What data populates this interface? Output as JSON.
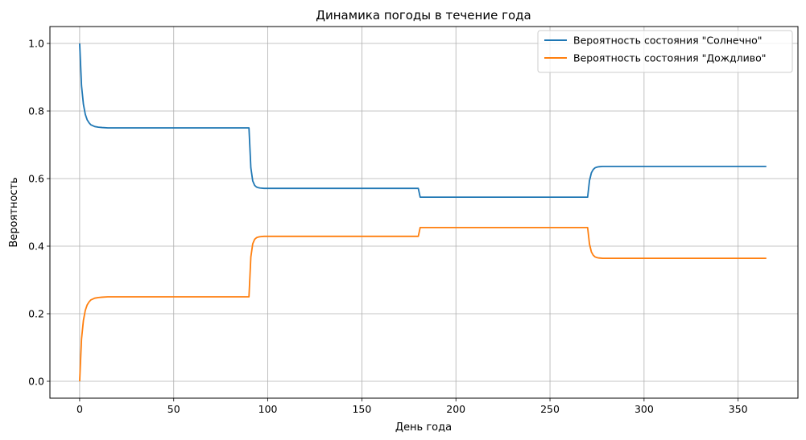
{
  "chart_data": {
    "type": "line",
    "title": "Динамика погоды в течение года",
    "xlabel": "День года",
    "ylabel": "Вероятность",
    "xlim": [
      -15.8,
      381.8
    ],
    "ylim": [
      -0.05,
      1.05
    ],
    "xticks": [
      0,
      50,
      100,
      150,
      200,
      250,
      300,
      350
    ],
    "yticks": [
      0.0,
      0.2,
      0.4,
      0.6,
      0.8,
      1.0
    ],
    "xtick_labels": [
      "0",
      "50",
      "100",
      "150",
      "200",
      "250",
      "300",
      "350"
    ],
    "ytick_labels": [
      "0.0",
      "0.2",
      "0.4",
      "0.6",
      "0.8",
      "1.0"
    ],
    "grid": true,
    "legend_position": "top-right",
    "series": [
      {
        "name": "Вероятность состояния \"Солнечно\"",
        "color": "#1f77b4",
        "x": [
          0,
          1,
          2,
          3,
          4,
          5,
          6,
          8,
          10,
          12,
          15,
          20,
          50,
          89,
          90,
          91,
          92,
          93,
          94,
          95,
          96,
          98,
          100,
          130,
          179,
          180,
          181,
          182,
          183,
          200,
          250,
          269,
          270,
          271,
          272,
          273,
          274,
          275,
          276,
          278,
          280,
          300,
          350,
          365
        ],
        "y": [
          1.0,
          0.875,
          0.82,
          0.79,
          0.774,
          0.765,
          0.759,
          0.754,
          0.752,
          0.751,
          0.75,
          0.75,
          0.75,
          0.75,
          0.75,
          0.632,
          0.593,
          0.58,
          0.575,
          0.573,
          0.572,
          0.571,
          0.571,
          0.571,
          0.571,
          0.571,
          0.545,
          0.545,
          0.545,
          0.545,
          0.545,
          0.545,
          0.545,
          0.594,
          0.617,
          0.627,
          0.632,
          0.634,
          0.635,
          0.636,
          0.636,
          0.636,
          0.636,
          0.636
        ]
      },
      {
        "name": "Вероятность состояния \"Дождливо\"",
        "color": "#ff7f0e",
        "x": [
          0,
          1,
          2,
          3,
          4,
          5,
          6,
          8,
          10,
          12,
          15,
          20,
          50,
          89,
          90,
          91,
          92,
          93,
          94,
          95,
          96,
          98,
          100,
          130,
          179,
          180,
          181,
          182,
          183,
          200,
          250,
          269,
          270,
          271,
          272,
          273,
          274,
          275,
          276,
          278,
          280,
          300,
          350,
          365
        ],
        "y": [
          0.0,
          0.125,
          0.18,
          0.21,
          0.226,
          0.235,
          0.241,
          0.246,
          0.248,
          0.249,
          0.25,
          0.25,
          0.25,
          0.25,
          0.25,
          0.368,
          0.407,
          0.42,
          0.425,
          0.427,
          0.428,
          0.429,
          0.429,
          0.429,
          0.429,
          0.429,
          0.455,
          0.455,
          0.455,
          0.455,
          0.455,
          0.455,
          0.455,
          0.406,
          0.383,
          0.373,
          0.368,
          0.366,
          0.365,
          0.364,
          0.364,
          0.364,
          0.364,
          0.364
        ]
      }
    ]
  }
}
